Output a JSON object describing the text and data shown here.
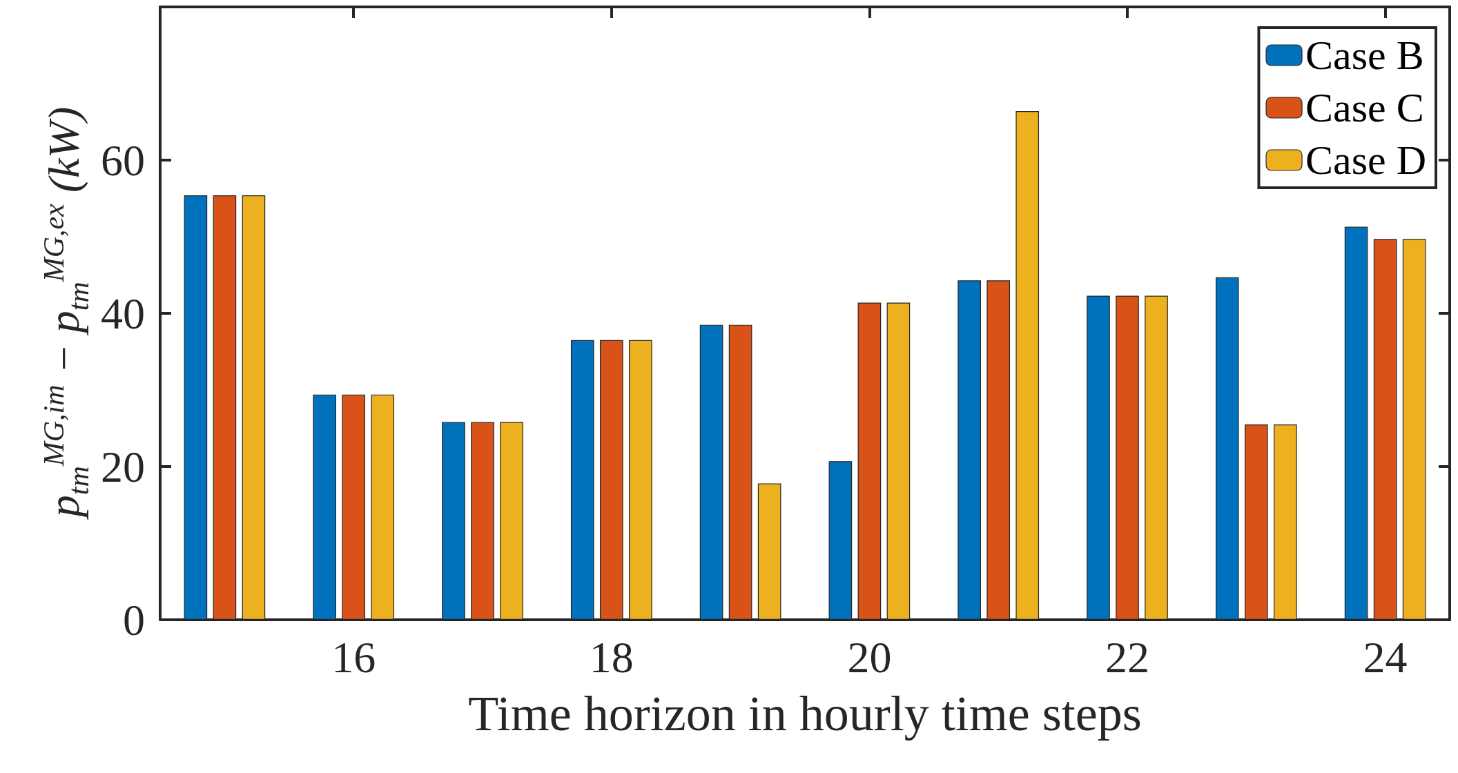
{
  "chart_data": {
    "type": "bar",
    "xlabel": "Time horizon in hourly time steps",
    "ylabel": "p$_{tm}$$^{MG,im}$ − p$_{tm}$$^{MG,ex}$ (kW)",
    "x": [
      15,
      16,
      17,
      18,
      19,
      20,
      21,
      22,
      23,
      24
    ],
    "series": [
      {
        "name": "Case B",
        "color": "#0072bd",
        "values": [
          55.4,
          29.4,
          25.8,
          36.5,
          38.5,
          20.7,
          44.3,
          42.3,
          44.7,
          51.3
        ]
      },
      {
        "name": "Case C",
        "color": "#d95319",
        "values": [
          55.4,
          29.4,
          25.8,
          36.5,
          38.5,
          41.4,
          44.3,
          42.3,
          25.5,
          49.7
        ]
      },
      {
        "name": "Case D",
        "color": "#edb120",
        "values": [
          55.4,
          29.4,
          25.8,
          36.5,
          17.8,
          41.4,
          66.4,
          42.3,
          25.5,
          49.7
        ]
      }
    ],
    "xlim": [
      14.5,
      24.5
    ],
    "xticks": [
      16,
      18,
      20,
      22,
      24
    ],
    "ylim": [
      0,
      80
    ],
    "yticks": [
      0,
      20,
      40,
      60
    ],
    "grid": false,
    "legend": "top right"
  }
}
